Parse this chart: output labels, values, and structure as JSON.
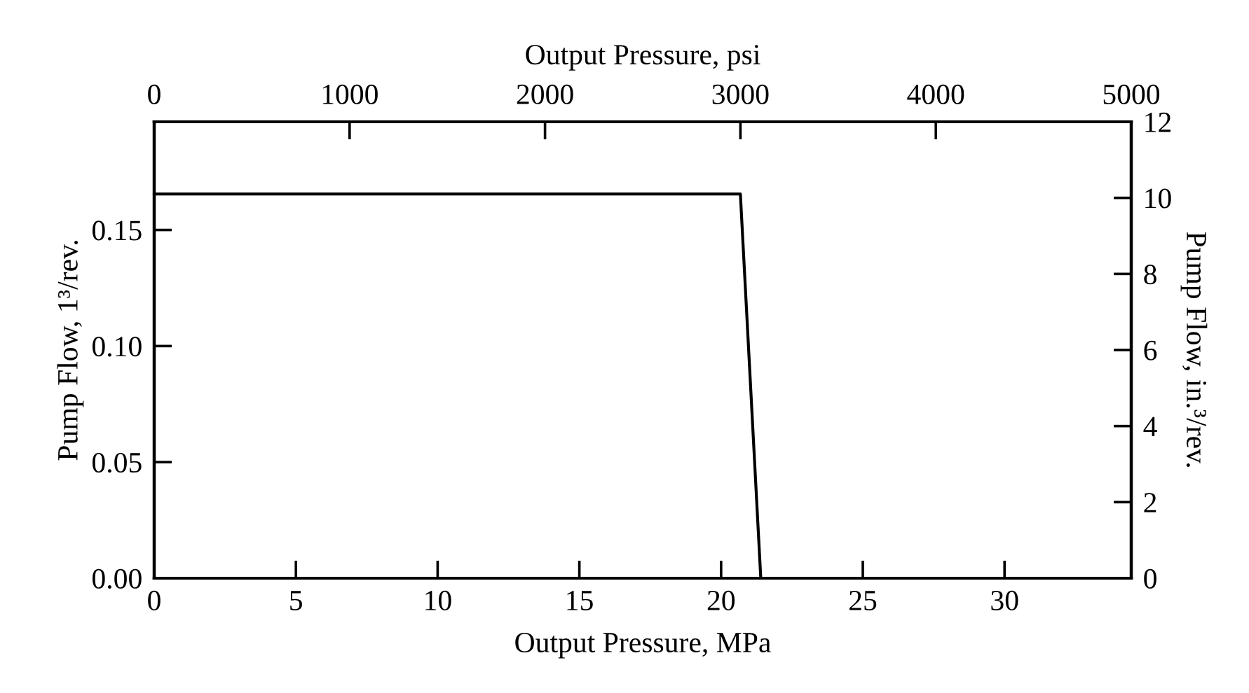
{
  "chart_data": {
    "type": "line",
    "xlabel": "Output Pressure, MPa",
    "x2label": "Output Pressure, psi",
    "ylabel": "Pump Flow, 1³/rev.",
    "y2label": "Pump Flow, in.³/rev.",
    "series": [
      {
        "color": "#000000",
        "x": [
          0,
          20.68,
          21.4,
          34.47
        ],
        "values": [
          0.1655,
          0.1655,
          0,
          0
        ]
      }
    ],
    "xlim": [
      0,
      34.47
    ],
    "xticks": [
      0,
      5,
      10,
      15,
      20,
      25,
      30
    ],
    "x2lim": [
      0,
      5000
    ],
    "x2ticks": [
      0,
      1000,
      2000,
      3000,
      4000,
      5000
    ],
    "ylim": [
      0,
      0.1966
    ],
    "yticks": [
      {
        "value": 0,
        "label": "0.00"
      },
      {
        "value": 0.05,
        "label": "0.05"
      },
      {
        "value": 0.1,
        "label": "0.10"
      },
      {
        "value": 0.15,
        "label": "0.15"
      }
    ],
    "y2lim": [
      0,
      12
    ],
    "y2ticks": [
      0,
      2,
      4,
      6,
      8,
      10,
      12
    ],
    "grid": false,
    "marker": "none",
    "line_style": "solid"
  }
}
